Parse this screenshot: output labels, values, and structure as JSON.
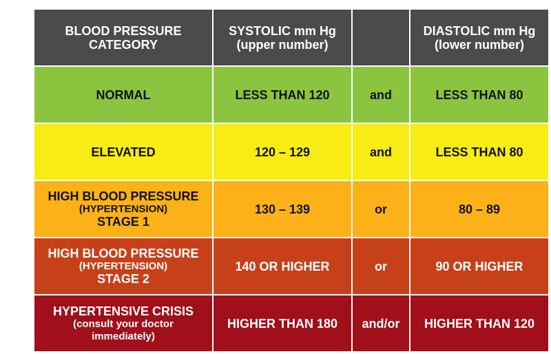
{
  "colors": {
    "header_bg": "#4a4b4d",
    "normal": "#8bc53f",
    "elevated": "#f7ec13",
    "stage1": "#fbb117",
    "stage2": "#c6401a",
    "crisis": "#a00f1a"
  },
  "header": {
    "category_line1": "BLOOD PRESSURE",
    "category_line2": "CATEGORY",
    "systolic_line1": "SYSTOLIC mm Hg",
    "systolic_line2": "(upper number)",
    "conjunction": "",
    "diastolic_line1": "DIASTOLIC mm Hg",
    "diastolic_line2": "(lower number)"
  },
  "rows": [
    {
      "category": "NORMAL",
      "systolic": "LESS THAN 120",
      "conjunction": "and",
      "diastolic": "LESS THAN 80"
    },
    {
      "category": "ELEVATED",
      "systolic": "120 – 129",
      "conjunction": "and",
      "diastolic": "LESS THAN 80"
    },
    {
      "category_line1": "HIGH BLOOD PRESSURE",
      "category_line2": "(HYPERTENSION)",
      "category_line3": "STAGE 1",
      "systolic": "130 – 139",
      "conjunction": "or",
      "diastolic": "80 – 89"
    },
    {
      "category_line1": "HIGH BLOOD PRESSURE",
      "category_line2": "(HYPERTENSION)",
      "category_line3": "STAGE 2",
      "systolic": "140 OR HIGHER",
      "conjunction": "or",
      "diastolic": "90 OR HIGHER"
    },
    {
      "category_line1": "HYPERTENSIVE CRISIS",
      "category_line2": "(consult your doctor",
      "category_line3": "immediately)",
      "systolic": "HIGHER THAN 180",
      "conjunction": "and/or",
      "diastolic": "HIGHER THAN 120"
    }
  ]
}
